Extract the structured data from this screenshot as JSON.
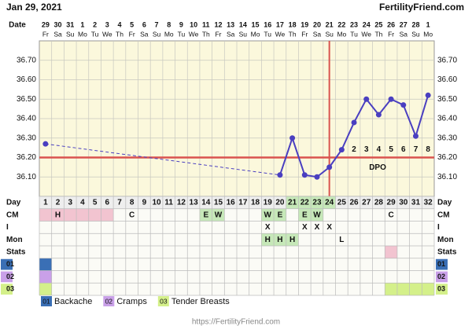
{
  "chart_data": {
    "type": "line",
    "title": "Jan 29, 2021",
    "site": "FertilityFriend.com",
    "date_label": "Date",
    "dates": [
      29,
      30,
      31,
      1,
      2,
      3,
      4,
      5,
      6,
      7,
      8,
      9,
      10,
      11,
      12,
      13,
      14,
      15,
      16,
      17,
      18,
      19,
      20,
      21,
      22,
      23,
      24,
      25,
      26,
      27,
      28,
      1
    ],
    "weekdays": [
      "Fr",
      "Sa",
      "Su",
      "Mo",
      "Tu",
      "We",
      "Th",
      "Fr",
      "Sa",
      "Su",
      "Mo",
      "Tu",
      "We",
      "Th",
      "Fr",
      "Sa",
      "Su",
      "Mo",
      "Tu",
      "We",
      "Th",
      "Fr",
      "Sa",
      "Su",
      "Mo",
      "Tu",
      "We",
      "Th",
      "Fr",
      "Sa",
      "Su",
      "Mo"
    ],
    "day_label": "Day",
    "categories": [
      1,
      2,
      3,
      4,
      5,
      6,
      7,
      8,
      9,
      10,
      11,
      12,
      13,
      14,
      15,
      16,
      17,
      18,
      19,
      20,
      21,
      22,
      23,
      24,
      25,
      26,
      27,
      28,
      29,
      30,
      31,
      32
    ],
    "day_highlight": [
      21,
      22,
      23,
      24
    ],
    "day_highlight_color": "#c6e8b8",
    "values": [
      36.27,
      null,
      null,
      null,
      null,
      null,
      null,
      null,
      null,
      null,
      null,
      null,
      null,
      null,
      null,
      null,
      null,
      null,
      null,
      36.11,
      36.3,
      36.11,
      36.1,
      36.15,
      36.24,
      36.38,
      36.5,
      36.42,
      36.5,
      36.47,
      36.31,
      36.52
    ],
    "color": "#4a3fc0",
    "ylim": [
      36.0,
      36.8
    ],
    "yticks": [
      {
        "value": 36.1,
        "label": "36.10"
      },
      {
        "value": 36.2,
        "label": "36.20"
      },
      {
        "value": 36.3,
        "label": "36.30"
      },
      {
        "value": 36.4,
        "label": "36.40"
      },
      {
        "value": 36.5,
        "label": "36.50"
      },
      {
        "value": 36.6,
        "label": "36.60"
      },
      {
        "value": 36.7,
        "label": "36.70"
      }
    ],
    "grid": true,
    "coverline": 36.2,
    "ovulation_day": 24,
    "marker_color": "#d9534f",
    "dpo_label": "DPO",
    "dpo": [
      {
        "day": 26,
        "label": "2"
      },
      {
        "day": 27,
        "label": "3"
      },
      {
        "day": 28,
        "label": "4"
      },
      {
        "day": 29,
        "label": "5"
      },
      {
        "day": 30,
        "label": "6"
      },
      {
        "day": 31,
        "label": "7"
      },
      {
        "day": 32,
        "label": "8"
      }
    ],
    "rows": [
      {
        "label": "CM",
        "cells": [
          {
            "day": 1,
            "fill": "#f2c4d0"
          },
          {
            "day": 2,
            "text": "H",
            "fill": "#f2c4d0"
          },
          {
            "day": 3,
            "fill": "#f2c4d0"
          },
          {
            "day": 4,
            "fill": "#f2c4d0"
          },
          {
            "day": 5,
            "fill": "#f2c4d0"
          },
          {
            "day": 6,
            "fill": "#f2c4d0"
          },
          {
            "day": 8,
            "text": "C"
          },
          {
            "day": 14,
            "text": "E",
            "fill": "#c6e8b8"
          },
          {
            "day": 15,
            "text": "W",
            "fill": "#c6e8b8"
          },
          {
            "day": 19,
            "text": "W",
            "fill": "#c6e8b8"
          },
          {
            "day": 20,
            "text": "E",
            "fill": "#c6e8b8"
          },
          {
            "day": 22,
            "text": "E",
            "fill": "#c6e8b8"
          },
          {
            "day": 23,
            "text": "W",
            "fill": "#c6e8b8"
          },
          {
            "day": 29,
            "text": "C"
          }
        ]
      },
      {
        "label": "I",
        "cells": [
          {
            "day": 19,
            "text": "X"
          },
          {
            "day": 22,
            "text": "X"
          },
          {
            "day": 23,
            "text": "X"
          },
          {
            "day": 24,
            "text": "X"
          }
        ]
      },
      {
        "label": "Mon",
        "cells": [
          {
            "day": 19,
            "text": "H",
            "fill": "#c6e8b8"
          },
          {
            "day": 20,
            "text": "H",
            "fill": "#c6e8b8"
          },
          {
            "day": 21,
            "text": "H",
            "fill": "#c6e8b8"
          },
          {
            "day": 25,
            "text": "L"
          }
        ]
      },
      {
        "label": "Stats",
        "cells": [
          {
            "day": 29,
            "fill": "#f2c4d0"
          }
        ]
      },
      {
        "label": "01",
        "color": "#3a6fb5",
        "cells": [
          {
            "day": 1,
            "fill": "#3a6fb5"
          }
        ]
      },
      {
        "label": "02",
        "color": "#c9a0e8",
        "cells": [
          {
            "day": 1,
            "fill": "#c9a0e8"
          }
        ]
      },
      {
        "label": "03",
        "color": "#d4f08a",
        "cells": [
          {
            "day": 1,
            "fill": "#d4f08a"
          },
          {
            "day": 29,
            "fill": "#d4f08a"
          },
          {
            "day": 30,
            "fill": "#d4f08a"
          },
          {
            "day": 31,
            "fill": "#d4f08a"
          },
          {
            "day": 32,
            "fill": "#d4f08a"
          }
        ]
      }
    ],
    "legend": [
      {
        "code": "01",
        "name": "Backache",
        "color": "#3a6fb5"
      },
      {
        "code": "02",
        "name": "Cramps",
        "color": "#c9a0e8"
      },
      {
        "code": "03",
        "name": "Tender Breasts",
        "color": "#d4f08a"
      }
    ],
    "footer": "https://FertilityFriend.com"
  }
}
